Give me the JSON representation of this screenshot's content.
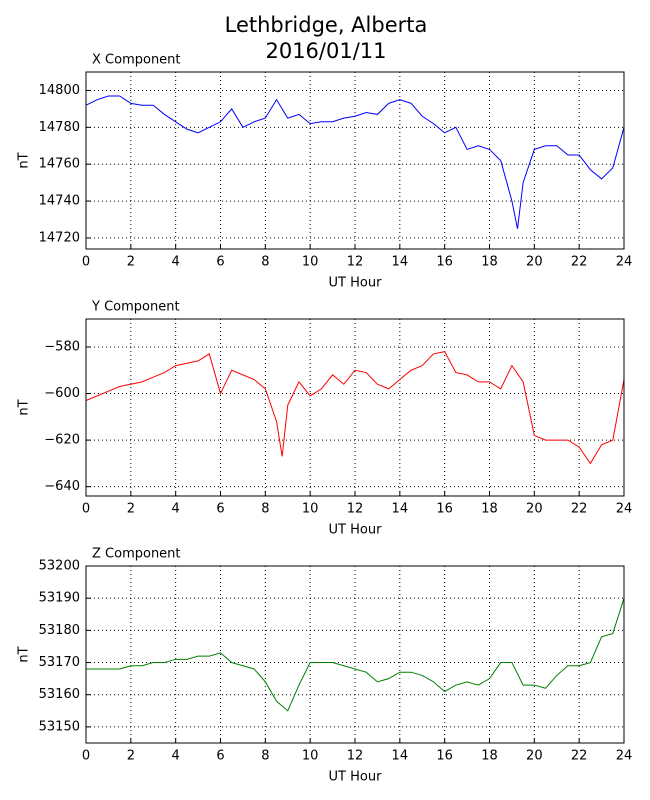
{
  "title": "Lethbridge, Alberta",
  "subtitle": "2016/01/11",
  "chart_data": [
    {
      "type": "line",
      "title": "X Component",
      "xlabel": "UT Hour",
      "ylabel": "nT",
      "x": [
        0,
        0.5,
        1,
        1.5,
        2,
        2.5,
        3,
        3.5,
        4,
        4.5,
        5,
        5.5,
        6,
        6.5,
        7,
        7.5,
        8,
        8.5,
        9,
        9.5,
        10,
        10.5,
        11,
        11.5,
        12,
        12.5,
        13,
        13.5,
        14,
        14.5,
        15,
        15.5,
        16,
        16.5,
        17,
        17.5,
        18,
        18.5,
        19,
        19.25,
        19.5,
        20,
        20.5,
        21,
        21.5,
        22,
        22.5,
        23,
        23.5,
        24
      ],
      "series": [
        {
          "name": "X",
          "color": "#0000ff",
          "values": [
            14792,
            14795,
            14797,
            14797,
            14793,
            14792,
            14792,
            14787,
            14783,
            14779,
            14777,
            14780,
            14783,
            14790,
            14780,
            14783,
            14785,
            14795,
            14785,
            14787,
            14782,
            14783,
            14783,
            14785,
            14786,
            14788,
            14787,
            14793,
            14795,
            14793,
            14786,
            14782,
            14777,
            14780,
            14768,
            14770,
            14768,
            14762,
            14740,
            14725,
            14750,
            14768,
            14770,
            14770,
            14765,
            14765,
            14757,
            14752,
            14758,
            14780
          ]
        }
      ],
      "xlim": [
        0,
        24
      ],
      "xticks": [
        0,
        2,
        4,
        6,
        8,
        10,
        12,
        14,
        16,
        18,
        20,
        22,
        24
      ],
      "ylim": [
        14714,
        14810
      ],
      "yticks": [
        14720,
        14740,
        14760,
        14780,
        14800
      ],
      "grid": true
    },
    {
      "type": "line",
      "title": "Y Component",
      "xlabel": "UT Hour",
      "ylabel": "nT",
      "x": [
        0,
        0.5,
        1,
        1.5,
        2,
        2.5,
        3,
        3.5,
        4,
        4.5,
        5,
        5.5,
        6,
        6.5,
        7,
        7.5,
        8,
        8.5,
        8.75,
        9,
        9.5,
        10,
        10.5,
        11,
        11.5,
        12,
        12.5,
        13,
        13.5,
        14,
        14.5,
        15,
        15.5,
        16,
        16.5,
        17,
        17.5,
        18,
        18.5,
        19,
        19.5,
        20,
        20.5,
        21,
        21.5,
        22,
        22.5,
        23,
        23.5,
        24
      ],
      "series": [
        {
          "name": "Y",
          "color": "#ff0000",
          "values": [
            -603,
            -601,
            -599,
            -597,
            -596,
            -595,
            -593,
            -591,
            -588,
            -587,
            -586,
            -583,
            -600,
            -590,
            -592,
            -594,
            -598,
            -612,
            -627,
            -605,
            -595,
            -601,
            -598,
            -592,
            -596,
            -590,
            -591,
            -596,
            -598,
            -594,
            -590,
            -588,
            -583,
            -582,
            -591,
            -592,
            -595,
            -595,
            -598,
            -588,
            -595,
            -618,
            -620,
            -620,
            -620,
            -623,
            -630,
            -622,
            -620,
            -594
          ]
        }
      ],
      "xlim": [
        0,
        24
      ],
      "xticks": [
        0,
        2,
        4,
        6,
        8,
        10,
        12,
        14,
        16,
        18,
        20,
        22,
        24
      ],
      "ylim": [
        -644,
        -568
      ],
      "yticks": [
        {
          "value": -640,
          "label": "−640"
        },
        {
          "value": -620,
          "label": "−620"
        },
        {
          "value": -600,
          "label": "−600"
        },
        {
          "value": -580,
          "label": "−580"
        }
      ],
      "grid": true
    },
    {
      "type": "line",
      "title": "Z Component",
      "xlabel": "UT Hour",
      "ylabel": "nT",
      "x": [
        0,
        0.5,
        1,
        1.5,
        2,
        2.5,
        3,
        3.5,
        4,
        4.5,
        5,
        5.5,
        6,
        6.5,
        7,
        7.5,
        8,
        8.5,
        9,
        9.5,
        10,
        10.5,
        11,
        11.5,
        12,
        12.5,
        13,
        13.5,
        14,
        14.5,
        15,
        15.5,
        16,
        16.5,
        17,
        17.5,
        18,
        18.5,
        19,
        19.5,
        20,
        20.5,
        21,
        21.5,
        22,
        22.5,
        23,
        23.5,
        24
      ],
      "series": [
        {
          "name": "Z",
          "color": "#008000",
          "values": [
            53168,
            53168,
            53168,
            53168,
            53169,
            53169,
            53170,
            53170,
            53171,
            53171,
            53172,
            53172,
            53173,
            53170,
            53169,
            53168,
            53164,
            53158,
            53155,
            53163,
            53170,
            53170,
            53170,
            53169,
            53168,
            53167,
            53164,
            53165,
            53167,
            53167,
            53166,
            53164,
            53161,
            53163,
            53164,
            53163,
            53165,
            53170,
            53170,
            53163,
            53163,
            53162,
            53166,
            53169,
            53169,
            53170,
            53178,
            53179,
            53190
          ]
        }
      ],
      "xlim": [
        0,
        24
      ],
      "xticks": [
        0,
        2,
        4,
        6,
        8,
        10,
        12,
        14,
        16,
        18,
        20,
        22,
        24
      ],
      "ylim": [
        53145,
        53200
      ],
      "yticks": [
        53150,
        53160,
        53170,
        53180,
        53190,
        53200
      ],
      "grid": true
    }
  ]
}
